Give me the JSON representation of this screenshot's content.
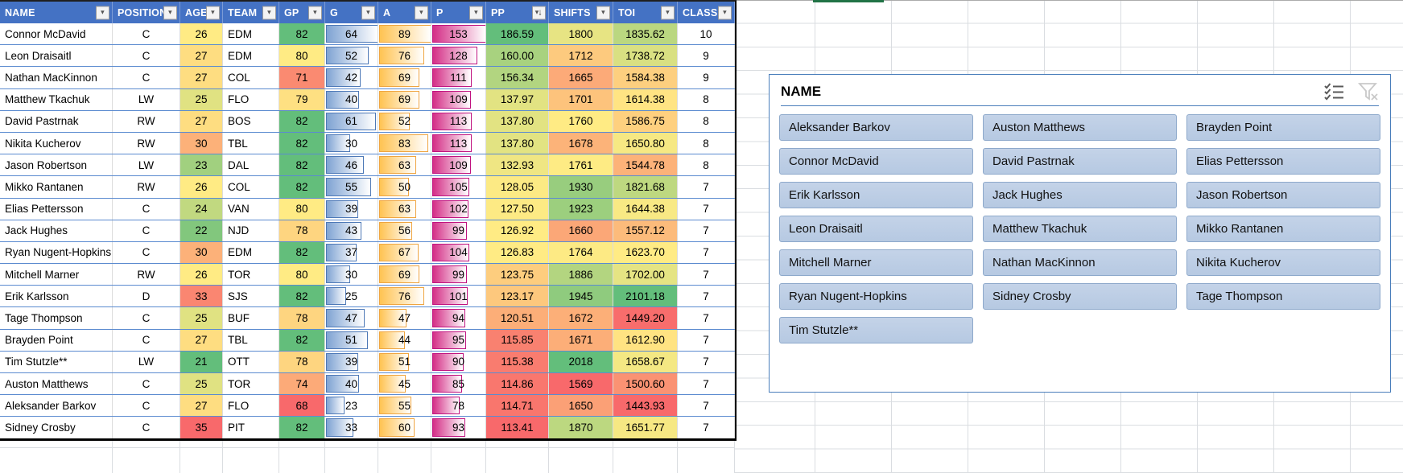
{
  "table": {
    "sorted_column": "PP",
    "sort_direction": "descending",
    "columns": [
      {
        "key": "name",
        "label": "NAME",
        "align": "left",
        "type": "text"
      },
      {
        "key": "position",
        "label": "POSITION",
        "align": "center",
        "type": "text"
      },
      {
        "key": "age",
        "label": "AGE",
        "align": "center",
        "type": "colorscale",
        "min": 21,
        "mid": 26,
        "max": 35,
        "reverse": true
      },
      {
        "key": "team",
        "label": "TEAM",
        "align": "left",
        "type": "text"
      },
      {
        "key": "gp",
        "label": "GP",
        "align": "center",
        "type": "colorscale",
        "min": 68,
        "mid": 80,
        "max": 82
      },
      {
        "key": "g",
        "label": "G",
        "align": "center",
        "type": "databar",
        "bar_max": 64,
        "bar_fill": "#7FA3D3",
        "bar_border": "#4E79B7"
      },
      {
        "key": "a",
        "label": "A",
        "align": "center",
        "type": "databar",
        "bar_max": 89,
        "bar_fill": "#FFC352",
        "bar_border": "#EFA540"
      },
      {
        "key": "p",
        "label": "P",
        "align": "center",
        "type": "databar",
        "bar_max": 153,
        "bar_fill": "#D42E86",
        "bar_border": "#C01380"
      },
      {
        "key": "pp",
        "label": "PP",
        "align": "center",
        "type": "colorscale",
        "min": 113.41,
        "mid": 126.83,
        "max": 186.59,
        "sorted": "desc"
      },
      {
        "key": "shifts",
        "label": "SHIFTS",
        "align": "center",
        "type": "colorscale",
        "min": 1569,
        "mid": 1760,
        "max": 2018
      },
      {
        "key": "toi",
        "label": "TOI",
        "align": "center",
        "type": "colorscale",
        "min": 1443.93,
        "mid": 1623.7,
        "max": 2101.18
      },
      {
        "key": "class",
        "label": "CLASS",
        "align": "center",
        "type": "text"
      }
    ],
    "rows": [
      [
        "Connor McDavid",
        "C",
        26,
        "EDM",
        82,
        64,
        89,
        153,
        "186.59",
        1800,
        "1835.62",
        10
      ],
      [
        "Leon Draisaitl",
        "C",
        27,
        "EDM",
        80,
        52,
        76,
        128,
        "160.00",
        1712,
        "1738.72",
        9
      ],
      [
        "Nathan MacKinnon",
        "C",
        27,
        "COL",
        71,
        42,
        69,
        111,
        "156.34",
        1665,
        "1584.38",
        9
      ],
      [
        "Matthew Tkachuk",
        "LW",
        25,
        "FLO",
        79,
        40,
        69,
        109,
        "137.97",
        1701,
        "1614.38",
        8
      ],
      [
        "David Pastrnak",
        "RW",
        27,
        "BOS",
        82,
        61,
        52,
        113,
        "137.80",
        1760,
        "1586.75",
        8
      ],
      [
        "Nikita Kucherov",
        "RW",
        30,
        "TBL",
        82,
        30,
        83,
        113,
        "137.80",
        1678,
        "1650.80",
        8
      ],
      [
        "Jason Robertson",
        "LW",
        23,
        "DAL",
        82,
        46,
        63,
        109,
        "132.93",
        1761,
        "1544.78",
        8
      ],
      [
        "Mikko Rantanen",
        "RW",
        26,
        "COL",
        82,
        55,
        50,
        105,
        "128.05",
        1930,
        "1821.68",
        7
      ],
      [
        "Elias Pettersson",
        "C",
        24,
        "VAN",
        80,
        39,
        63,
        102,
        "127.50",
        1923,
        "1644.38",
        7
      ],
      [
        "Jack Hughes",
        "C",
        22,
        "NJD",
        78,
        43,
        56,
        99,
        "126.92",
        1660,
        "1557.12",
        7
      ],
      [
        "Ryan Nugent-Hopkins",
        "C",
        30,
        "EDM",
        82,
        37,
        67,
        104,
        "126.83",
        1764,
        "1623.70",
        7
      ],
      [
        "Mitchell Marner",
        "RW",
        26,
        "TOR",
        80,
        30,
        69,
        99,
        "123.75",
        1886,
        "1702.00",
        7
      ],
      [
        "Erik Karlsson",
        "D",
        33,
        "SJS",
        82,
        25,
        76,
        101,
        "123.17",
        1945,
        "2101.18",
        7
      ],
      [
        "Tage Thompson",
        "C",
        25,
        "BUF",
        78,
        47,
        47,
        94,
        "120.51",
        1672,
        "1449.20",
        7
      ],
      [
        "Brayden Point",
        "C",
        27,
        "TBL",
        82,
        51,
        44,
        95,
        "115.85",
        1671,
        "1612.90",
        7
      ],
      [
        "Tim Stutzle**",
        "LW",
        21,
        "OTT",
        78,
        39,
        51,
        90,
        "115.38",
        2018,
        "1658.67",
        7
      ],
      [
        "Auston Matthews",
        "C",
        25,
        "TOR",
        74,
        40,
        45,
        85,
        "114.86",
        1569,
        "1500.60",
        7
      ],
      [
        "Aleksander Barkov",
        "C",
        27,
        "FLO",
        68,
        23,
        55,
        78,
        "114.71",
        1650,
        "1443.93",
        7
      ],
      [
        "Sidney Crosby",
        "C",
        35,
        "PIT",
        82,
        33,
        60,
        93,
        "113.41",
        1870,
        "1651.77",
        7
      ]
    ]
  },
  "slicer": {
    "title": "NAME",
    "items": [
      "Aleksander Barkov",
      "Auston Matthews",
      "Brayden Point",
      "Connor McDavid",
      "David Pastrnak",
      "Elias Pettersson",
      "Erik Karlsson",
      "Jack Hughes",
      "Jason Robertson",
      "Leon Draisaitl",
      "Matthew Tkachuk",
      "Mikko Rantanen",
      "Mitchell Marner",
      "Nathan MacKinnon",
      "Nikita Kucherov",
      "Ryan Nugent-Hopkins",
      "Sidney Crosby",
      "Tage Thompson",
      "Tim Stutzle**"
    ]
  },
  "colors": {
    "header_blue": "#4472C4",
    "row_line_blue": "#5B8BD0",
    "scale_red": "#F8696B",
    "scale_yellow": "#FFEB84",
    "scale_green": "#63BE7B",
    "slicer_button_fill": "#BCCEE6",
    "slicer_border": "#4A7EBB",
    "selection_green": "#217346"
  }
}
